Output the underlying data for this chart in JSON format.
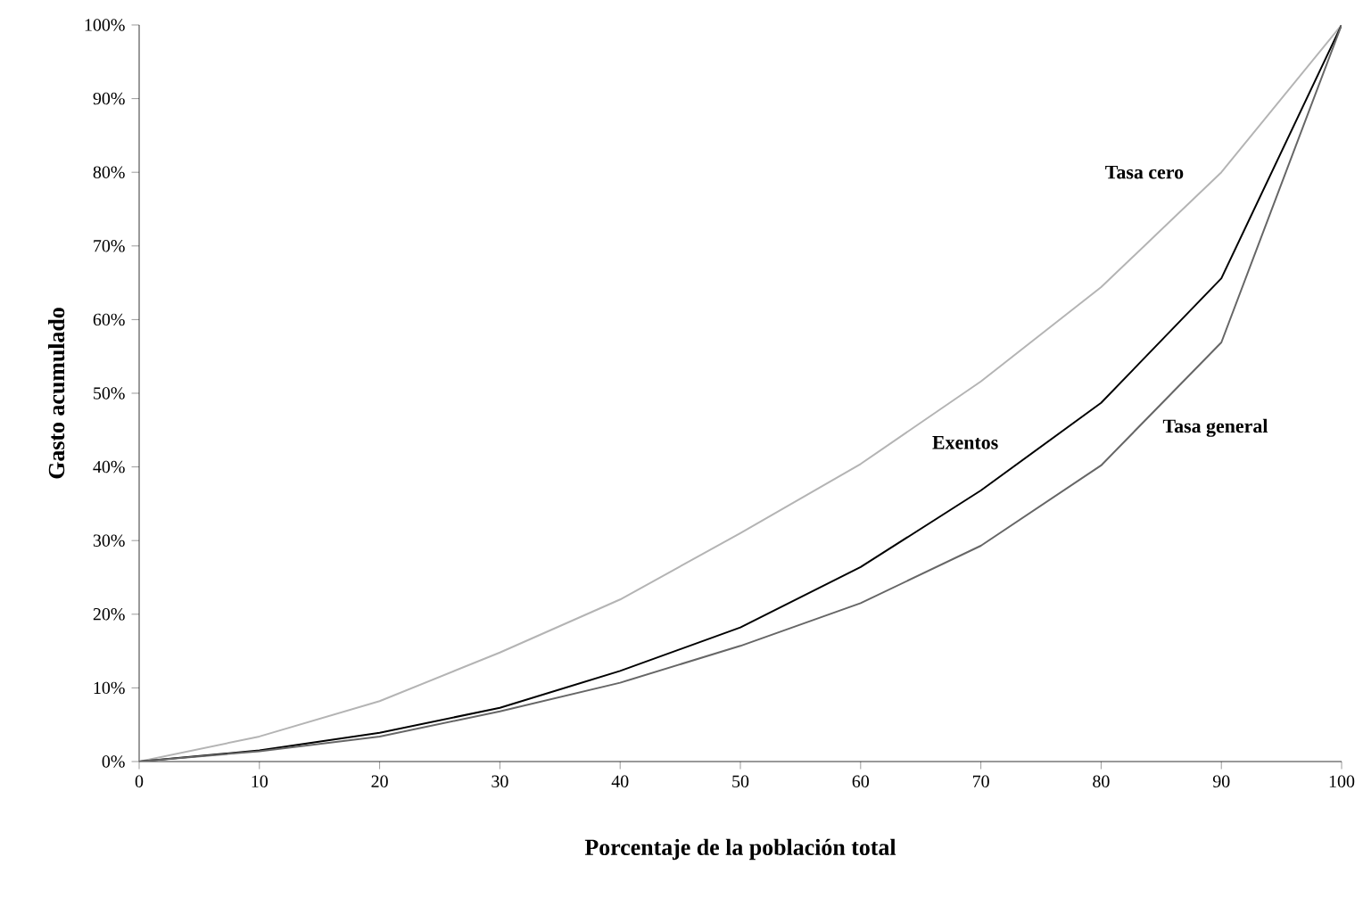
{
  "chart_data": {
    "type": "line",
    "xlabel": "Porcentaje de la población total",
    "ylabel": "Gasto acumulado",
    "x": [
      0,
      10,
      20,
      30,
      40,
      50,
      60,
      70,
      80,
      90,
      100
    ],
    "series": [
      {
        "name": "Tasa cero",
        "color": "#b4b4b4",
        "values": [
          0,
          3.4,
          8.2,
          14.8,
          22,
          31,
          40.4,
          51.6,
          64.4,
          80,
          100
        ]
      },
      {
        "name": "Exentos",
        "color": "#000000",
        "values": [
          0,
          1.5,
          3.9,
          7.3,
          12.3,
          18.2,
          26.4,
          36.8,
          48.7,
          65.6,
          100
        ]
      },
      {
        "name": "Tasa general",
        "color": "#666666",
        "values": [
          0,
          1.4,
          3.4,
          6.8,
          10.7,
          15.7,
          21.5,
          29.3,
          40.2,
          56.9,
          100
        ]
      }
    ],
    "xlim": [
      0,
      100
    ],
    "ylim": [
      0,
      100
    ],
    "xticks": [
      0,
      10,
      20,
      30,
      40,
      50,
      60,
      70,
      80,
      90,
      100
    ],
    "yticks": [
      {
        "value": 0,
        "label": "0%"
      },
      {
        "value": 10,
        "label": "10%"
      },
      {
        "value": 20,
        "label": "20%"
      },
      {
        "value": 30,
        "label": "30%"
      },
      {
        "value": 40,
        "label": "40%"
      },
      {
        "value": 50,
        "label": "50%"
      },
      {
        "value": 60,
        "label": "60%"
      },
      {
        "value": 70,
        "label": "70%"
      },
      {
        "value": 80,
        "label": "80%"
      },
      {
        "value": 90,
        "label": "90%"
      },
      {
        "value": 100,
        "label": "100%"
      }
    ],
    "grid": false,
    "legend": false,
    "marker": "none",
    "line_style": "solid"
  }
}
